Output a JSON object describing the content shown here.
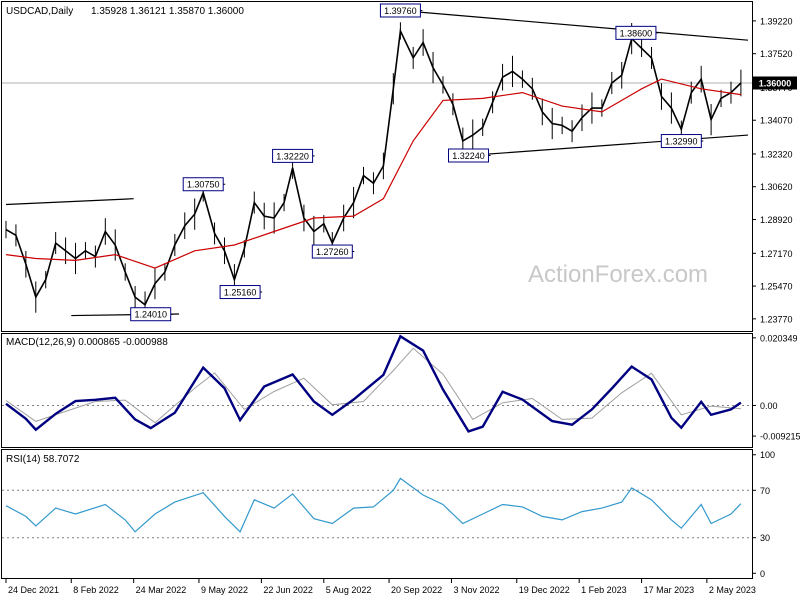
{
  "header": {
    "symbol": "USDCAD,Daily",
    "ohlc": "1.35928 1.36121 1.35870 1.36000"
  },
  "watermark": "ActionForex.com",
  "colors": {
    "price": "#000000",
    "ma": "#cc0000",
    "macd_main": "#000080",
    "macd_signal": "#a0a0a0",
    "rsi": "#3399cc",
    "grid": "#808080",
    "label_border": "#000080",
    "current_bg": "#000000",
    "watermark": "#c8c8c8"
  },
  "chart_data": [
    {
      "type": "line",
      "panel": "price",
      "ylim": [
        1.2314,
        1.402
      ],
      "y_ticks": [
        "1.39220",
        "1.37520",
        "1.35770",
        "1.34070",
        "1.32320",
        "1.30620",
        "1.28920",
        "1.27170",
        "1.25470",
        "1.23770"
      ],
      "current_price_label": "1.36000",
      "current_price": 1.36,
      "annotations": [
        {
          "text": "1.39760",
          "x": "2022-09-28",
          "y": 1.3976
        },
        {
          "text": "1.38600",
          "x": "2023-03-13",
          "y": 1.386
        },
        {
          "text": "1.32240",
          "x": "2022-11-15",
          "y": 1.3224
        },
        {
          "text": "1.32990",
          "x": "2023-04-14",
          "y": 1.3299
        },
        {
          "text": "1.32220",
          "x": "2022-07-14",
          "y": 1.3222
        },
        {
          "text": "1.30750",
          "x": "2022-05-12",
          "y": 1.3075
        },
        {
          "text": "1.27260",
          "x": "2022-08-11",
          "y": 1.2726
        },
        {
          "text": "1.25160",
          "x": "2022-06-07",
          "y": 1.2516
        },
        {
          "text": "1.24010",
          "x": "2022-04-05",
          "y": 1.2401
        }
      ],
      "trendlines": [
        {
          "from": [
            "2022-09-28",
            1.3976
          ],
          "to": [
            "2023-05-31",
            1.3822
          ]
        },
        {
          "from": [
            "2022-11-15",
            1.3224
          ],
          "to": [
            "2023-05-31",
            1.333
          ]
        },
        {
          "from": [
            "2021-12-24",
            1.297
          ],
          "to": [
            "2022-03-24",
            1.3
          ]
        },
        {
          "from": [
            "2022-02-08",
            1.2394
          ],
          "to": [
            "2022-04-25",
            1.2402
          ]
        }
      ],
      "series": [
        {
          "name": "Close",
          "points": [
            [
              "2021-12-24",
              1.284
            ],
            [
              "2021-12-31",
              1.281
            ],
            [
              "2022-01-07",
              1.266
            ],
            [
              "2022-01-14",
              1.249
            ],
            [
              "2022-01-21",
              1.258
            ],
            [
              "2022-01-28",
              1.277
            ],
            [
              "2022-02-04",
              1.273
            ],
            [
              "2022-02-11",
              1.269
            ],
            [
              "2022-02-18",
              1.273
            ],
            [
              "2022-02-25",
              1.27
            ],
            [
              "2022-03-04",
              1.283
            ],
            [
              "2022-03-11",
              1.276
            ],
            [
              "2022-03-18",
              1.262
            ],
            [
              "2022-03-25",
              1.249
            ],
            [
              "2022-04-01",
              1.245
            ],
            [
              "2022-04-08",
              1.256
            ],
            [
              "2022-04-15",
              1.262
            ],
            [
              "2022-04-22",
              1.276
            ],
            [
              "2022-04-29",
              1.286
            ],
            [
              "2022-05-06",
              1.292
            ],
            [
              "2022-05-12",
              1.303
            ],
            [
              "2022-05-20",
              1.282
            ],
            [
              "2022-05-27",
              1.273
            ],
            [
              "2022-06-03",
              1.258
            ],
            [
              "2022-06-10",
              1.274
            ],
            [
              "2022-06-17",
              1.298
            ],
            [
              "2022-06-24",
              1.291
            ],
            [
              "2022-07-01",
              1.29
            ],
            [
              "2022-07-08",
              1.298
            ],
            [
              "2022-07-14",
              1.316
            ],
            [
              "2022-07-22",
              1.29
            ],
            [
              "2022-07-29",
              1.283
            ],
            [
              "2022-08-05",
              1.287
            ],
            [
              "2022-08-11",
              1.277
            ],
            [
              "2022-08-19",
              1.29
            ],
            [
              "2022-08-26",
              1.298
            ],
            [
              "2022-09-02",
              1.312
            ],
            [
              "2022-09-09",
              1.308
            ],
            [
              "2022-09-16",
              1.317
            ],
            [
              "2022-09-23",
              1.357
            ],
            [
              "2022-09-28",
              1.387
            ],
            [
              "2022-10-07",
              1.373
            ],
            [
              "2022-10-14",
              1.381
            ],
            [
              "2022-10-21",
              1.368
            ],
            [
              "2022-10-28",
              1.359
            ],
            [
              "2022-11-04",
              1.349
            ],
            [
              "2022-11-11",
              1.33
            ],
            [
              "2022-11-18",
              1.333
            ],
            [
              "2022-11-25",
              1.337
            ],
            [
              "2022-12-02",
              1.35
            ],
            [
              "2022-12-09",
              1.363
            ],
            [
              "2022-12-16",
              1.366
            ],
            [
              "2022-12-23",
              1.362
            ],
            [
              "2022-12-30",
              1.357
            ],
            [
              "2023-01-06",
              1.345
            ],
            [
              "2023-01-13",
              1.339
            ],
            [
              "2023-01-20",
              1.338
            ],
            [
              "2023-01-27",
              1.335
            ],
            [
              "2023-02-03",
              1.342
            ],
            [
              "2023-02-10",
              1.347
            ],
            [
              "2023-02-17",
              1.347
            ],
            [
              "2023-02-24",
              1.36
            ],
            [
              "2023-03-03",
              1.364
            ],
            [
              "2023-03-10",
              1.383
            ],
            [
              "2023-03-17",
              1.378
            ],
            [
              "2023-03-24",
              1.373
            ],
            [
              "2023-03-31",
              1.353
            ],
            [
              "2023-04-07",
              1.347
            ],
            [
              "2023-04-14",
              1.336
            ],
            [
              "2023-04-21",
              1.355
            ],
            [
              "2023-04-28",
              1.362
            ],
            [
              "2023-05-05",
              1.341
            ],
            [
              "2023-05-12",
              1.352
            ],
            [
              "2023-05-19",
              1.355
            ],
            [
              "2023-05-26",
              1.36
            ]
          ]
        },
        {
          "name": "MA",
          "points": [
            [
              "2021-12-24",
              1.271
            ],
            [
              "2022-01-14",
              1.269
            ],
            [
              "2022-02-11",
              1.268
            ],
            [
              "2022-03-11",
              1.271
            ],
            [
              "2022-04-08",
              1.264
            ],
            [
              "2022-05-06",
              1.273
            ],
            [
              "2022-06-03",
              1.276
            ],
            [
              "2022-07-01",
              1.283
            ],
            [
              "2022-07-29",
              1.29
            ],
            [
              "2022-08-26",
              1.291
            ],
            [
              "2022-09-16",
              1.3
            ],
            [
              "2022-10-07",
              1.33
            ],
            [
              "2022-10-28",
              1.351
            ],
            [
              "2022-11-25",
              1.352
            ],
            [
              "2022-12-23",
              1.355
            ],
            [
              "2023-01-20",
              1.348
            ],
            [
              "2023-02-17",
              1.345
            ],
            [
              "2023-03-17",
              1.357
            ],
            [
              "2023-03-31",
              1.362
            ],
            [
              "2023-04-28",
              1.357
            ],
            [
              "2023-05-26",
              1.354
            ]
          ]
        }
      ]
    },
    {
      "type": "line",
      "panel": "macd",
      "title": "MACD(12,26,9) 0.000865 -0.000988",
      "ylim": [
        -0.0125,
        0.0215
      ],
      "y_ticks": [
        "0.020349",
        "0.00",
        "-0.009215"
      ],
      "series": [
        {
          "name": "MACD",
          "points": [
            [
              "2021-12-24",
              0.0005
            ],
            [
              "2022-01-07",
              -0.004
            ],
            [
              "2022-01-14",
              -0.0073
            ],
            [
              "2022-01-28",
              -0.0025
            ],
            [
              "2022-02-11",
              0.0013
            ],
            [
              "2022-02-25",
              0.0017
            ],
            [
              "2022-03-11",
              0.0023
            ],
            [
              "2022-03-25",
              -0.0042
            ],
            [
              "2022-04-05",
              -0.0068
            ],
            [
              "2022-04-22",
              -0.0022
            ],
            [
              "2022-05-12",
              0.0114
            ],
            [
              "2022-05-27",
              0.0052
            ],
            [
              "2022-06-07",
              -0.0044
            ],
            [
              "2022-06-24",
              0.0057
            ],
            [
              "2022-07-14",
              0.0093
            ],
            [
              "2022-07-29",
              0.0012
            ],
            [
              "2022-08-11",
              -0.0028
            ],
            [
              "2022-08-26",
              0.0018
            ],
            [
              "2022-09-16",
              0.0092
            ],
            [
              "2022-09-28",
              0.0208
            ],
            [
              "2022-10-14",
              0.0165
            ],
            [
              "2022-10-28",
              0.0048
            ],
            [
              "2022-11-15",
              -0.0078
            ],
            [
              "2022-11-25",
              -0.0064
            ],
            [
              "2022-12-09",
              0.0041
            ],
            [
              "2022-12-23",
              0.0018
            ],
            [
              "2023-01-13",
              -0.0047
            ],
            [
              "2023-01-27",
              -0.0058
            ],
            [
              "2023-02-10",
              -0.0012
            ],
            [
              "2023-02-24",
              0.0051
            ],
            [
              "2023-03-10",
              0.0117
            ],
            [
              "2023-03-24",
              0.0078
            ],
            [
              "2023-04-07",
              -0.0037
            ],
            [
              "2023-04-14",
              -0.0067
            ],
            [
              "2023-04-28",
              0.0011
            ],
            [
              "2023-05-05",
              -0.0028
            ],
            [
              "2023-05-19",
              -0.0012
            ],
            [
              "2023-05-26",
              0.000865
            ]
          ]
        },
        {
          "name": "Signal",
          "points": [
            [
              "2021-12-24",
              0.0015
            ],
            [
              "2022-01-14",
              -0.0048
            ],
            [
              "2022-02-04",
              -0.0018
            ],
            [
              "2022-02-25",
              0.0012
            ],
            [
              "2022-03-18",
              0.0016
            ],
            [
              "2022-04-08",
              -0.0052
            ],
            [
              "2022-05-06",
              0.0052
            ],
            [
              "2022-05-20",
              0.0098
            ],
            [
              "2022-06-10",
              -0.0012
            ],
            [
              "2022-07-01",
              0.0042
            ],
            [
              "2022-07-22",
              0.0082
            ],
            [
              "2022-08-11",
              0.0002
            ],
            [
              "2022-09-02",
              0.0012
            ],
            [
              "2022-09-23",
              0.0105
            ],
            [
              "2022-10-07",
              0.0172
            ],
            [
              "2022-10-28",
              0.0094
            ],
            [
              "2022-11-18",
              -0.0042
            ],
            [
              "2022-12-09",
              0.0008
            ],
            [
              "2022-12-30",
              0.0021
            ],
            [
              "2023-01-20",
              -0.0042
            ],
            [
              "2023-02-10",
              -0.0038
            ],
            [
              "2023-03-03",
              0.0038
            ],
            [
              "2023-03-24",
              0.0097
            ],
            [
              "2023-04-14",
              -0.0028
            ],
            [
              "2023-05-05",
              -0.0002
            ],
            [
              "2023-05-26",
              -0.000988
            ]
          ]
        }
      ]
    },
    {
      "type": "line",
      "panel": "rsi",
      "title": "RSI(14) 58.7072",
      "ylim": [
        -4,
        104
      ],
      "y_ticks": [
        "100",
        "70",
        "30",
        "0"
      ],
      "levels": [
        70,
        30
      ],
      "series": [
        {
          "name": "RSI",
          "points": [
            [
              "2021-12-24",
              57
            ],
            [
              "2022-01-07",
              48
            ],
            [
              "2022-01-14",
              40
            ],
            [
              "2022-01-28",
              55
            ],
            [
              "2022-02-11",
              50
            ],
            [
              "2022-03-04",
              58
            ],
            [
              "2022-03-18",
              45
            ],
            [
              "2022-03-25",
              35
            ],
            [
              "2022-04-08",
              50
            ],
            [
              "2022-04-22",
              60
            ],
            [
              "2022-05-12",
              68
            ],
            [
              "2022-05-27",
              48
            ],
            [
              "2022-06-07",
              35
            ],
            [
              "2022-06-17",
              62
            ],
            [
              "2022-07-01",
              55
            ],
            [
              "2022-07-14",
              67
            ],
            [
              "2022-07-29",
              46
            ],
            [
              "2022-08-11",
              42
            ],
            [
              "2022-08-26",
              55
            ],
            [
              "2022-09-09",
              56
            ],
            [
              "2022-09-23",
              70
            ],
            [
              "2022-09-28",
              80
            ],
            [
              "2022-10-14",
              66
            ],
            [
              "2022-10-28",
              58
            ],
            [
              "2022-11-11",
              42
            ],
            [
              "2022-11-25",
              50
            ],
            [
              "2022-12-09",
              58
            ],
            [
              "2022-12-23",
              56
            ],
            [
              "2023-01-06",
              48
            ],
            [
              "2023-01-20",
              45
            ],
            [
              "2023-02-03",
              52
            ],
            [
              "2023-02-17",
              55
            ],
            [
              "2023-03-03",
              60
            ],
            [
              "2023-03-10",
              72
            ],
            [
              "2023-03-24",
              62
            ],
            [
              "2023-04-07",
              45
            ],
            [
              "2023-04-14",
              38
            ],
            [
              "2023-04-28",
              58
            ],
            [
              "2023-05-05",
              42
            ],
            [
              "2023-05-19",
              50
            ],
            [
              "2023-05-26",
              58.7072
            ]
          ]
        }
      ]
    }
  ],
  "x_axis": {
    "tick_labels": [
      {
        "text": "24 Dec 2021",
        "x": "2021-12-24"
      },
      {
        "text": "8 Feb 2022",
        "x": "2022-02-08"
      },
      {
        "text": "24 Mar 2022",
        "x": "2022-03-24"
      },
      {
        "text": "9 May 2022",
        "x": "2022-05-09"
      },
      {
        "text": "22 Jun 2022",
        "x": "2022-06-22"
      },
      {
        "text": "5 Aug 2022",
        "x": "2022-08-05"
      },
      {
        "text": "20 Sep 2022",
        "x": "2022-09-20"
      },
      {
        "text": "3 Nov 2022",
        "x": "2022-11-03"
      },
      {
        "text": "19 Dec 2022",
        "x": "2022-12-19"
      },
      {
        "text": "1 Feb 2023",
        "x": "2023-02-01"
      },
      {
        "text": "17 Mar 2023",
        "x": "2023-03-17"
      },
      {
        "text": "2 May 2023",
        "x": "2023-05-02"
      }
    ],
    "range": [
      "2021-12-24",
      "2023-05-31"
    ]
  }
}
